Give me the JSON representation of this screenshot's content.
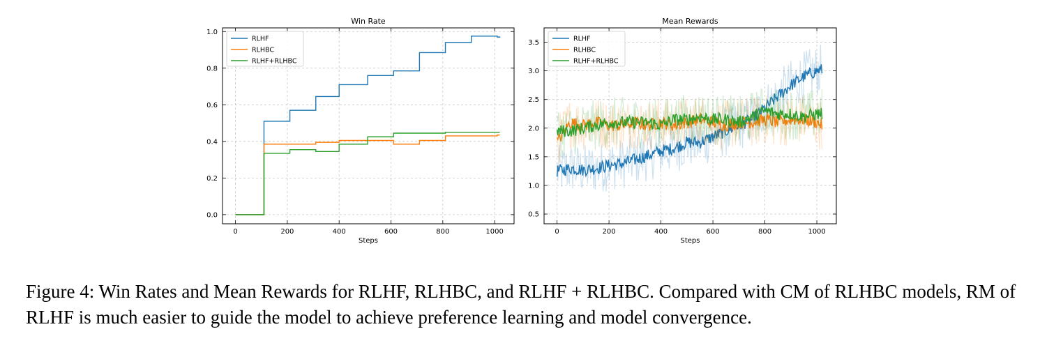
{
  "chart_data": [
    {
      "type": "line",
      "title": "Win Rate",
      "xlabel": "Steps",
      "ylabel": "",
      "xlim": [
        -50,
        1075
      ],
      "ylim": [
        -0.05,
        1.02
      ],
      "xticks": [
        0,
        200,
        400,
        600,
        800,
        1000
      ],
      "yticks": [
        0.0,
        0.2,
        0.4,
        0.6,
        0.8,
        1.0
      ],
      "xtick_labels": [
        "0",
        "200",
        "400",
        "600",
        "800",
        "1000"
      ],
      "ytick_labels": [
        "0.0",
        "0.2",
        "0.4",
        "0.6",
        "0.8",
        "1.0"
      ],
      "grid": true,
      "legend": "top-left",
      "step": true,
      "series": [
        {
          "name": "RLHF",
          "color": "#1f77b4",
          "x": [
            0,
            110,
            210,
            310,
            400,
            510,
            610,
            710,
            810,
            910,
            1010,
            1020
          ],
          "y": [
            0.0,
            0.51,
            0.57,
            0.645,
            0.71,
            0.76,
            0.785,
            0.885,
            0.94,
            0.975,
            0.97,
            0.967
          ]
        },
        {
          "name": "RLHBC",
          "color": "#ff7f0e",
          "x": [
            0,
            110,
            210,
            310,
            400,
            510,
            610,
            710,
            810,
            910,
            1010,
            1020
          ],
          "y": [
            0.0,
            0.385,
            0.385,
            0.395,
            0.405,
            0.405,
            0.385,
            0.405,
            0.43,
            0.43,
            0.435,
            0.435
          ]
        },
        {
          "name": "RLHF+RLHBC",
          "color": "#2ca02c",
          "x": [
            0,
            110,
            210,
            310,
            400,
            510,
            610,
            710,
            810,
            910,
            1010,
            1020
          ],
          "y": [
            0.0,
            0.335,
            0.355,
            0.345,
            0.385,
            0.425,
            0.445,
            0.445,
            0.45,
            0.45,
            0.45,
            0.45
          ]
        }
      ]
    },
    {
      "type": "line",
      "title": "Mean Rewards",
      "xlabel": "Steps",
      "ylabel": "",
      "xlim": [
        -50,
        1075
      ],
      "ylim": [
        0.33,
        3.75
      ],
      "xticks": [
        0,
        200,
        400,
        600,
        800,
        1000
      ],
      "yticks": [
        0.5,
        1.0,
        1.5,
        2.0,
        2.5,
        3.0,
        3.5
      ],
      "xtick_labels": [
        "0",
        "200",
        "400",
        "600",
        "800",
        "1000"
      ],
      "ytick_labels": [
        "0.5",
        "1.0",
        "1.5",
        "2.0",
        "2.5",
        "3.0",
        "3.5"
      ],
      "grid": true,
      "legend": "top-left",
      "shaded_raw": true,
      "series": [
        {
          "name": "RLHF",
          "color": "#1f77b4",
          "x": [
            0,
            50,
            100,
            150,
            200,
            250,
            300,
            350,
            400,
            450,
            500,
            550,
            600,
            650,
            700,
            750,
            800,
            850,
            900,
            950,
            1000,
            1020
          ],
          "y": [
            1.25,
            1.3,
            1.27,
            1.3,
            1.35,
            1.38,
            1.45,
            1.52,
            1.6,
            1.65,
            1.75,
            1.75,
            1.85,
            1.95,
            2.05,
            2.15,
            2.35,
            2.55,
            2.75,
            2.9,
            3.0,
            3.02
          ]
        },
        {
          "name": "RLHBC",
          "color": "#ff7f0e",
          "x": [
            0,
            50,
            100,
            150,
            200,
            250,
            300,
            350,
            400,
            450,
            500,
            550,
            600,
            650,
            700,
            750,
            800,
            850,
            900,
            950,
            1000,
            1020
          ],
          "y": [
            1.75,
            2.1,
            2.05,
            2.1,
            2.05,
            2.05,
            2.1,
            2.05,
            2.1,
            2.05,
            2.1,
            2.15,
            2.1,
            2.05,
            2.1,
            2.1,
            2.15,
            2.1,
            2.15,
            2.15,
            2.1,
            2.05
          ]
        },
        {
          "name": "RLHF+RLHBC",
          "color": "#2ca02c",
          "x": [
            0,
            50,
            100,
            150,
            200,
            250,
            300,
            350,
            400,
            450,
            500,
            550,
            600,
            650,
            700,
            750,
            800,
            850,
            900,
            950,
            1000,
            1020
          ],
          "y": [
            1.95,
            1.95,
            2.0,
            2.05,
            2.1,
            2.1,
            2.1,
            2.1,
            2.05,
            2.15,
            2.15,
            2.2,
            2.15,
            2.15,
            2.1,
            2.2,
            2.3,
            2.25,
            2.25,
            2.2,
            2.25,
            2.25
          ]
        }
      ]
    }
  ],
  "caption": "Figure 4: Win Rates and Mean Rewards for RLHF, RLHBC, and RLHF + RLHBC. Compared with CM of RLHBC models, RM of RLHF is much easier to guide the model to achieve preference learning and model convergence."
}
